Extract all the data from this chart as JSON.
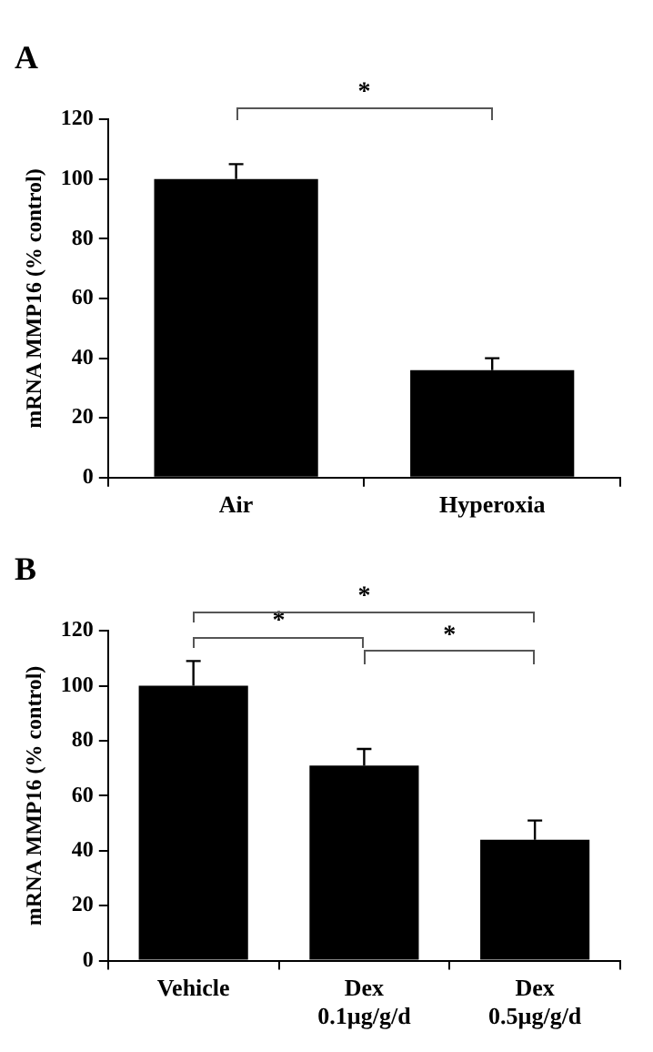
{
  "chart_data": [
    {
      "type": "bar",
      "title": "A",
      "ylabel": "mRNA MMP16 (% control)",
      "categories": [
        "Air",
        "Hyperoxia"
      ],
      "values": [
        100,
        36
      ],
      "errors": [
        5,
        4
      ],
      "color": "#000000",
      "ylim": [
        0,
        120
      ],
      "yticks": [
        0,
        20,
        40,
        60,
        80,
        100,
        120
      ],
      "grid": false,
      "legend": false,
      "annotations": [
        "*"
      ]
    },
    {
      "type": "bar",
      "title": "B",
      "ylabel": "mRNA MMP16 (% control)",
      "categories": [
        "Vehicle",
        "Dex 0.1µg/g/d",
        "Dex 0.5µg/g/d"
      ],
      "values": [
        100,
        71,
        44
      ],
      "errors": [
        9,
        6,
        7
      ],
      "color": "#000000",
      "ylim": [
        0,
        120
      ],
      "yticks": [
        0,
        20,
        40,
        60,
        80,
        100,
        120
      ],
      "grid": false,
      "legend": false,
      "annotations": [
        "*",
        "*",
        "*"
      ]
    }
  ]
}
